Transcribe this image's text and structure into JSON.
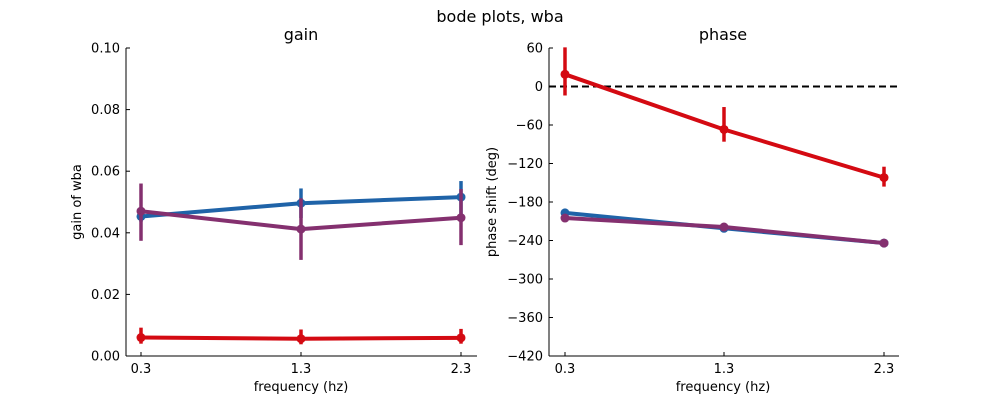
{
  "figure": {
    "suptitle": "bode plots, wba"
  },
  "chart_data": [
    {
      "type": "line",
      "title": "gain",
      "xlabel": "frequency (hz)",
      "ylabel": "gain of wba",
      "categories": [
        "0.3",
        "1.3",
        "2.3"
      ],
      "ylim": [
        0,
        0.1
      ],
      "yticks": [
        "0.00",
        "0.02",
        "0.04",
        "0.06",
        "0.08",
        "0.10"
      ],
      "grid": false,
      "series": [
        {
          "color": "#1f63a8",
          "values": [
            0.0453,
            0.0496,
            0.0516
          ],
          "err_low": [
            0.0436,
            0.0448,
            0.0456
          ],
          "err_high": [
            0.0468,
            0.0544,
            0.0568
          ]
        },
        {
          "color": "#d40a12",
          "values": [
            0.006,
            0.0056,
            0.0059
          ],
          "err_low": [
            0.004,
            0.0038,
            0.004
          ],
          "err_high": [
            0.0092,
            0.0086,
            0.0088
          ]
        },
        {
          "color": "#84306f",
          "values": [
            0.047,
            0.0412,
            0.0449
          ],
          "err_low": [
            0.0374,
            0.0312,
            0.036
          ],
          "err_high": [
            0.056,
            0.0512,
            0.0542
          ]
        }
      ]
    },
    {
      "type": "line",
      "title": "phase",
      "xlabel": "frequency (hz)",
      "ylabel": "phase shift (deg)",
      "categories": [
        "0.3",
        "1.3",
        "2.3"
      ],
      "ylim": [
        -420,
        60
      ],
      "yticks": [
        "60",
        "0",
        "−60",
        "−120",
        "−180",
        "−240",
        "−300",
        "−360",
        "−420"
      ],
      "grid": false,
      "reference_line": {
        "y": 0,
        "style": "dashed",
        "color": "#000000"
      },
      "series": [
        {
          "color": "#1f63a8",
          "values": [
            -197,
            -221,
            -244
          ],
          "err_low": [
            -201,
            -225,
            -247
          ],
          "err_high": [
            -193,
            -218,
            -241
          ]
        },
        {
          "color": "#d40a12",
          "values": [
            19,
            -67,
            -142
          ],
          "err_low": [
            -14,
            -86,
            -156
          ],
          "err_high": [
            61,
            -32,
            -125
          ]
        },
        {
          "color": "#84306f",
          "values": [
            -205,
            -219,
            -244
          ],
          "err_low": [
            -209,
            -223,
            -247
          ],
          "err_high": [
            -201,
            -216,
            -241
          ]
        }
      ]
    }
  ]
}
